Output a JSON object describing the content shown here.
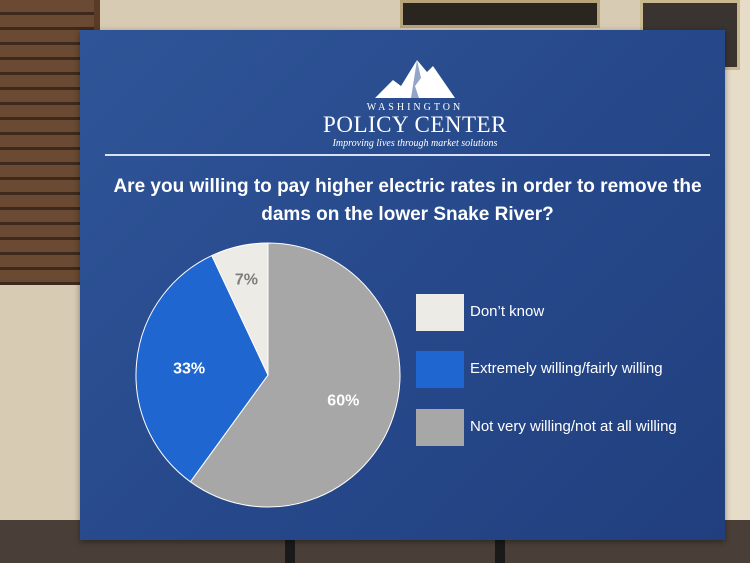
{
  "org": {
    "name_top": "WASHINGTON",
    "name_main": "POLICY CENTER",
    "tagline": "Improving lives through market solutions"
  },
  "colors": {
    "board_bg": "#2a4d8f",
    "dont_know": "#ecebe6",
    "willing": "#1f66d1",
    "not_willing": "#a7a7a7"
  },
  "chart_data": {
    "type": "pie",
    "title": "Are you willing to pay higher electric rates in order to remove the dams on the lower Snake River?",
    "legend_placement": "right",
    "slices": [
      {
        "label": "Don’t know",
        "value": 7,
        "value_label": "7%",
        "color": "#ecebe6"
      },
      {
        "label": "Extremely willing/fairly willing",
        "value": 33,
        "value_label": "33%",
        "color": "#1f66d1"
      },
      {
        "label": "Not very willing/not at all willing",
        "value": 60,
        "value_label": "60%",
        "color": "#a7a7a7"
      }
    ]
  }
}
